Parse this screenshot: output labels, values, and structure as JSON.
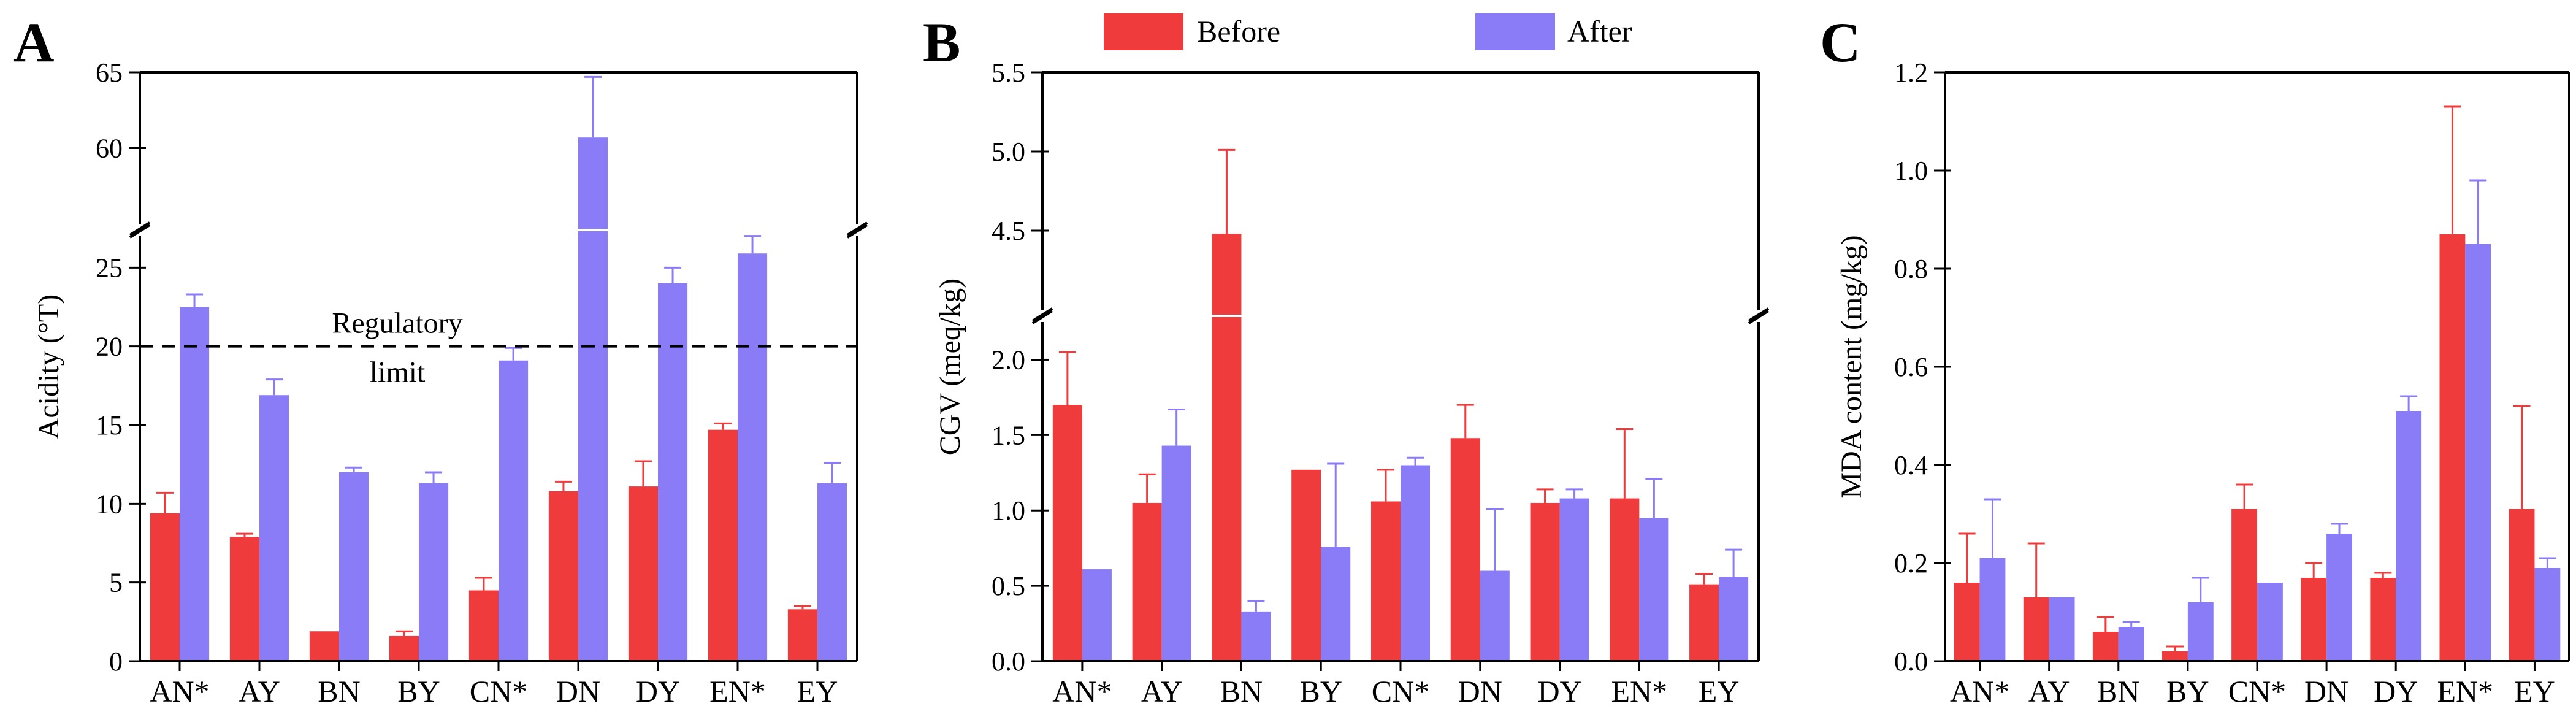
{
  "legend": {
    "before_label": "Before",
    "after_label": "After",
    "before_color": "#ef3b3b",
    "after_color": "#8a7cf7"
  },
  "chart_data": [
    {
      "panel": "A",
      "type": "bar",
      "ylabel": "Acidity (°T)",
      "categories": [
        "AN*",
        "AY",
        "BN",
        "BY",
        "CN*",
        "DN",
        "DY",
        "EN*",
        "EY"
      ],
      "y_break": [
        27,
        55
      ],
      "ylim": [
        0,
        65
      ],
      "y_ticks_lower": [
        0,
        5,
        10,
        15,
        20,
        25
      ],
      "y_ticks_upper": [
        60,
        65
      ],
      "series": [
        {
          "name": "Before",
          "values": [
            9.4,
            7.9,
            1.9,
            1.6,
            4.5,
            10.8,
            11.1,
            14.7,
            3.3
          ],
          "errors": [
            1.3,
            0.2,
            0.0,
            0.3,
            0.8,
            0.6,
            1.6,
            0.4,
            0.2
          ]
        },
        {
          "name": "After",
          "values": [
            22.5,
            16.9,
            12.0,
            11.3,
            19.1,
            60.7,
            24.0,
            25.9,
            11.3
          ],
          "errors": [
            0.8,
            1.0,
            0.3,
            0.7,
            0.8,
            4.0,
            1.0,
            1.7,
            1.3
          ]
        }
      ],
      "reference_line": {
        "value": 20,
        "label_line1": "Regulatory",
        "label_line2": "limit"
      }
    },
    {
      "panel": "B",
      "type": "bar",
      "ylabel": "CGV (meq/kg)",
      "categories": [
        "AN*",
        "AY",
        "BN",
        "BY",
        "CN*",
        "DN",
        "DY",
        "EN*",
        "EY"
      ],
      "y_break": [
        2.25,
        4.0
      ],
      "ylim": [
        0,
        5.5
      ],
      "y_ticks_lower": [
        0.0,
        0.5,
        1.0,
        1.5,
        2.0
      ],
      "y_ticks_upper": [
        4.5,
        5.0,
        5.5
      ],
      "series": [
        {
          "name": "Before",
          "values": [
            1.7,
            1.05,
            4.48,
            1.27,
            1.06,
            1.48,
            1.05,
            1.08,
            0.51
          ],
          "errors": [
            0.35,
            0.19,
            0.53,
            0.0,
            0.21,
            0.22,
            0.09,
            0.46,
            0.07
          ]
        },
        {
          "name": "After",
          "values": [
            0.61,
            1.43,
            0.33,
            0.76,
            1.3,
            0.6,
            1.08,
            0.95,
            0.56
          ],
          "errors": [
            0.0,
            0.24,
            0.07,
            0.55,
            0.05,
            0.41,
            0.06,
            0.26,
            0.18
          ]
        }
      ]
    },
    {
      "panel": "C",
      "type": "bar",
      "ylabel": "MDA content (mg/kg)",
      "categories": [
        "AN*",
        "AY",
        "BN",
        "BY",
        "CN*",
        "DN",
        "DY",
        "EN*",
        "EY"
      ],
      "ylim": [
        0,
        1.2
      ],
      "y_ticks": [
        0.0,
        0.2,
        0.4,
        0.6,
        0.8,
        1.0,
        1.2
      ],
      "series": [
        {
          "name": "Before",
          "values": [
            0.16,
            0.13,
            0.06,
            0.02,
            0.31,
            0.17,
            0.17,
            0.87,
            0.31
          ],
          "errors": [
            0.1,
            0.11,
            0.03,
            0.01,
            0.05,
            0.03,
            0.01,
            0.26,
            0.21
          ]
        },
        {
          "name": "After",
          "values": [
            0.21,
            0.13,
            0.07,
            0.12,
            0.16,
            0.26,
            0.51,
            0.85,
            0.19
          ],
          "errors": [
            0.12,
            0.0,
            0.01,
            0.05,
            0.0,
            0.02,
            0.03,
            0.13,
            0.02
          ]
        }
      ]
    }
  ]
}
